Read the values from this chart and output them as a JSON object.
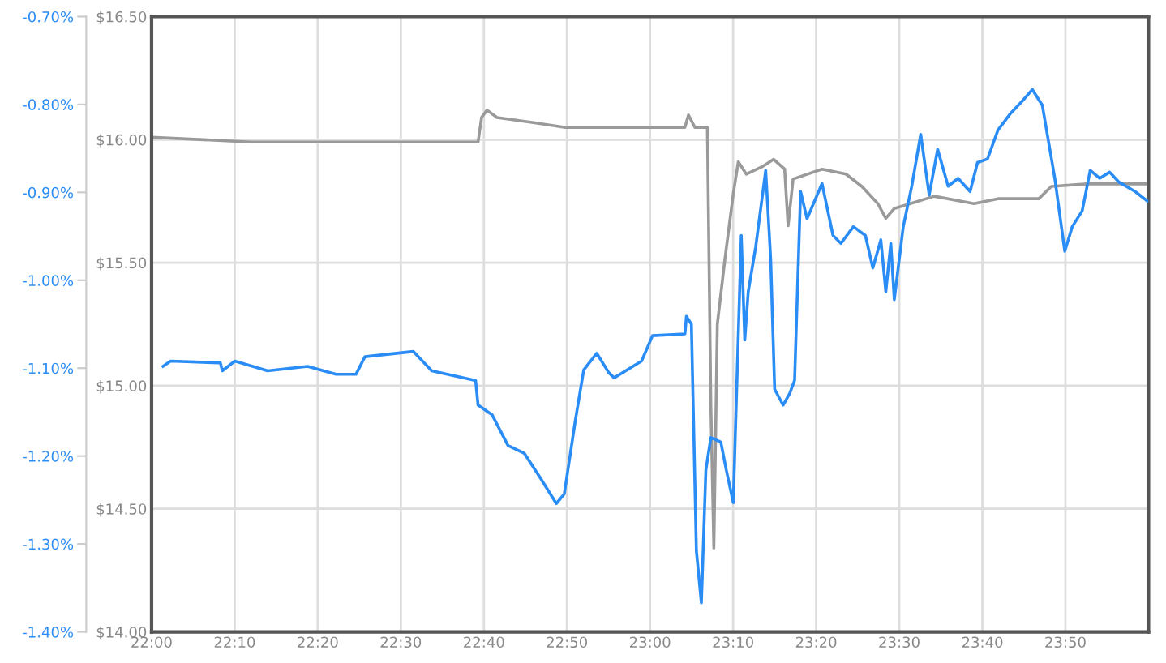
{
  "chart_data": {
    "type": "line",
    "xlim": [
      22.0,
      24.0
    ],
    "xticks": [
      {
        "value": 22.0,
        "label": "22:00"
      },
      {
        "value": 22.1667,
        "label": "22:10"
      },
      {
        "value": 22.3333,
        "label": "22:20"
      },
      {
        "value": 22.5,
        "label": "22:30"
      },
      {
        "value": 22.6667,
        "label": "22:40"
      },
      {
        "value": 22.8333,
        "label": "22:50"
      },
      {
        "value": 23.0,
        "label": "23:00"
      },
      {
        "value": 23.1667,
        "label": "23:10"
      },
      {
        "value": 23.3333,
        "label": "23:20"
      },
      {
        "value": 23.5,
        "label": "23:30"
      },
      {
        "value": 23.6667,
        "label": "23:40"
      },
      {
        "value": 23.8333,
        "label": "23:50"
      }
    ],
    "ylim": [
      14.0,
      16.5
    ],
    "yticks": [
      {
        "value": 14.0,
        "label": "$14.00"
      },
      {
        "value": 14.5,
        "label": "$14.50"
      },
      {
        "value": 15.0,
        "label": "$15.00"
      },
      {
        "value": 15.5,
        "label": "$15.50"
      },
      {
        "value": 16.0,
        "label": "$16.00"
      },
      {
        "value": 16.5,
        "label": "$16.50"
      }
    ],
    "y2lim": [
      -1.4,
      -0.7
    ],
    "y2ticks": [
      {
        "value": -1.4,
        "label": "-1.40%"
      },
      {
        "value": -1.3,
        "label": "-1.30%"
      },
      {
        "value": -1.2,
        "label": "-1.20%"
      },
      {
        "value": -1.1,
        "label": "-1.10%"
      },
      {
        "value": -1.0,
        "label": "-1.00%"
      },
      {
        "value": -0.9,
        "label": "-0.90%"
      },
      {
        "value": -0.8,
        "label": "-0.80%"
      },
      {
        "value": -0.7,
        "label": "-0.70%"
      }
    ],
    "grid": true,
    "series": [
      {
        "color": "#9a9a9a",
        "x": [
          22.0,
          22.2,
          22.362,
          22.655,
          22.662,
          22.673,
          22.693,
          22.763,
          22.828,
          22.908,
          23.07,
          23.077,
          23.09,
          23.115,
          23.122,
          23.128,
          23.135,
          23.15,
          23.167,
          23.177,
          23.193,
          23.225,
          23.248,
          23.27,
          23.277,
          23.287,
          23.345,
          23.393,
          23.425,
          23.457,
          23.473,
          23.49,
          23.522,
          23.57,
          23.65,
          23.698,
          23.78,
          23.805,
          23.877,
          23.973,
          23.998
        ],
        "values": [
          16.01,
          15.99,
          15.99,
          15.99,
          16.09,
          16.12,
          16.09,
          16.07,
          16.05,
          16.05,
          16.05,
          16.1,
          16.05,
          16.05,
          14.92,
          14.34,
          15.25,
          15.51,
          15.78,
          15.91,
          15.86,
          15.89,
          15.92,
          15.88,
          15.65,
          15.84,
          15.88,
          15.86,
          15.81,
          15.74,
          15.68,
          15.72,
          15.74,
          15.77,
          15.74,
          15.76,
          15.76,
          15.81,
          15.82,
          15.82,
          15.82
        ]
      },
      {
        "color": "#2a8cf5",
        "axis": "y2",
        "x": [
          22.023,
          22.038,
          22.138,
          22.142,
          22.167,
          22.233,
          22.313,
          22.37,
          22.41,
          22.428,
          22.525,
          22.562,
          22.65,
          22.655,
          22.683,
          22.715,
          22.748,
          22.78,
          22.812,
          22.828,
          22.85,
          22.867,
          22.893,
          22.917,
          22.928,
          22.983,
          23.005,
          23.07,
          23.073,
          23.083,
          23.093,
          23.103,
          23.112,
          23.122,
          23.142,
          23.153,
          23.167,
          23.183,
          23.19,
          23.197,
          23.212,
          23.232,
          23.242,
          23.25,
          23.267,
          23.28,
          23.29,
          23.302,
          23.315,
          23.345,
          23.367,
          23.383,
          23.408,
          23.432,
          23.447,
          23.463,
          23.473,
          23.483,
          23.49,
          23.508,
          23.525,
          23.543,
          23.56,
          23.577,
          23.598,
          23.618,
          23.642,
          23.657,
          23.677,
          23.698,
          23.722,
          23.747,
          23.767,
          23.787,
          23.812,
          23.832,
          23.847,
          23.867,
          23.883,
          23.902,
          23.922,
          23.94,
          23.973,
          23.998
        ],
        "values": [
          -1.098,
          -1.092,
          -1.094,
          -1.103,
          -1.092,
          -1.103,
          -1.098,
          -1.107,
          -1.107,
          -1.087,
          -1.081,
          -1.103,
          -1.114,
          -1.142,
          -1.153,
          -1.188,
          -1.197,
          -1.225,
          -1.254,
          -1.243,
          -1.16,
          -1.102,
          -1.083,
          -1.105,
          -1.111,
          -1.092,
          -1.063,
          -1.061,
          -1.041,
          -1.05,
          -1.308,
          -1.367,
          -1.216,
          -1.179,
          -1.184,
          -1.216,
          -1.253,
          -0.949,
          -1.068,
          -1.013,
          -0.962,
          -0.875,
          -0.976,
          -1.124,
          -1.142,
          -1.129,
          -1.114,
          -0.899,
          -0.93,
          -0.89,
          -0.949,
          -0.958,
          -0.939,
          -0.949,
          -0.986,
          -0.954,
          -1.013,
          -0.958,
          -1.022,
          -0.939,
          -0.893,
          -0.834,
          -0.903,
          -0.851,
          -0.893,
          -0.884,
          -0.899,
          -0.866,
          -0.862,
          -0.829,
          -0.811,
          -0.796,
          -0.783,
          -0.801,
          -0.884,
          -0.967,
          -0.939,
          -0.921,
          -0.875,
          -0.884,
          -0.877,
          -0.888,
          -0.899,
          -0.91
        ]
      }
    ]
  }
}
